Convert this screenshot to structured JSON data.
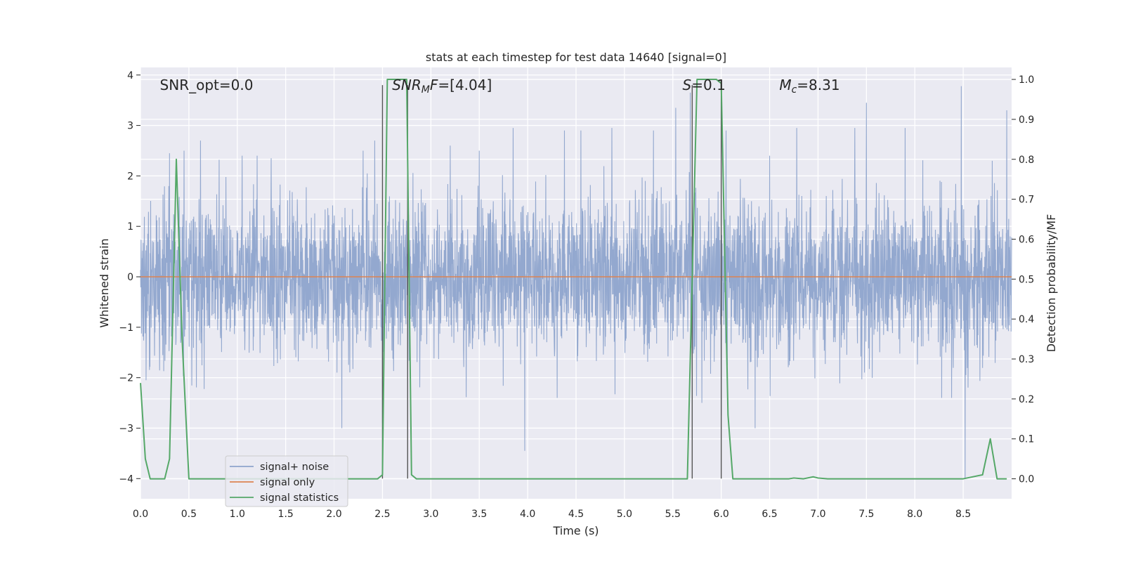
{
  "chart_data": {
    "type": "line",
    "title": "stats at each timestep for test data 14640 [signal=0]",
    "xlabel": "Time (s)",
    "ylabel_left": "Whitened strain",
    "ylabel_right": "Detection probability/MF",
    "xlim": [
      0.0,
      9.0
    ],
    "ylim_left": [
      -4.4,
      4.15
    ],
    "ylim_right": [
      -0.05,
      1.03
    ],
    "grid": true,
    "legend_position": "lower-left",
    "x_ticks": [
      "0.0",
      "0.5",
      "1.0",
      "1.5",
      "2.0",
      "2.5",
      "3.0",
      "3.5",
      "4.0",
      "4.5",
      "5.0",
      "5.5",
      "6.0",
      "6.5",
      "7.0",
      "7.5",
      "8.0",
      "8.5"
    ],
    "y_left_ticks": [
      "−4",
      "−3",
      "−2",
      "−1",
      "0",
      "1",
      "2",
      "3",
      "4"
    ],
    "y_right_ticks": [
      "0.0",
      "0.1",
      "0.2",
      "0.3",
      "0.4",
      "0.5",
      "0.6",
      "0.7",
      "0.8",
      "0.9",
      "1.0"
    ],
    "annotations": [
      {
        "text": "SNR_opt=0.0",
        "x": 0.2,
        "y": 3.8,
        "italic": false
      },
      {
        "text": "SNR",
        "sub": "M",
        "rest": "F=[4.04]",
        "x": 2.6,
        "y": 3.8,
        "italic": true
      },
      {
        "text": "S",
        "rest": "=0.1",
        "x": 5.6,
        "y": 3.8,
        "italic": true
      },
      {
        "text": "M",
        "sub": "c",
        "rest": "=8.31",
        "x": 6.6,
        "y": 3.8,
        "italic": true
      }
    ],
    "vertical_lines": [
      2.5,
      2.76,
      5.7,
      6.0
    ],
    "vertical_lines_ylim": [
      -4.0,
      3.8
    ],
    "series": [
      {
        "name": "signal+ noise",
        "color": "#8ea4cc",
        "axis": "left",
        "noise_std": 0.75,
        "spikes": [
          [
            0.3,
            2.45
          ],
          [
            0.45,
            2.5
          ],
          [
            0.62,
            2.7
          ],
          [
            1.05,
            2.4
          ],
          [
            1.35,
            2.35
          ],
          [
            2.08,
            -3.0
          ],
          [
            2.3,
            2.5
          ],
          [
            2.42,
            2.7
          ],
          [
            2.5,
            -2.9
          ],
          [
            3.2,
            2.6
          ],
          [
            3.5,
            2.5
          ],
          [
            3.85,
            2.95
          ],
          [
            3.97,
            -3.45
          ],
          [
            4.38,
            2.9
          ],
          [
            4.55,
            2.9
          ],
          [
            4.87,
            2.95
          ],
          [
            5.3,
            2.9
          ],
          [
            5.53,
            3.35
          ],
          [
            5.68,
            3.65
          ],
          [
            5.8,
            -2.5
          ],
          [
            6.05,
            2.9
          ],
          [
            6.0,
            -2.75
          ],
          [
            6.35,
            -3.0
          ],
          [
            6.5,
            2.4
          ],
          [
            6.78,
            2.95
          ],
          [
            7.38,
            2.95
          ],
          [
            7.5,
            3.45
          ],
          [
            7.9,
            2.95
          ],
          [
            8.48,
            3.78
          ],
          [
            8.52,
            -4.0
          ],
          [
            8.8,
            2.3
          ],
          [
            8.95,
            3.3
          ]
        ]
      },
      {
        "name": "signal only",
        "color": "#dd8452",
        "axis": "left",
        "x": [
          0.0,
          9.0
        ],
        "y": [
          0.0,
          0.0
        ]
      },
      {
        "name": "signal statistics",
        "color": "#55a868",
        "axis": "right",
        "x": [
          0.0,
          0.05,
          0.1,
          0.25,
          0.3,
          0.37,
          0.43,
          0.5,
          1.0,
          1.5,
          2.0,
          2.45,
          2.5,
          2.55,
          2.6,
          2.7,
          2.75,
          2.8,
          2.85,
          2.9,
          3.0,
          3.1,
          3.5,
          4.0,
          4.5,
          5.0,
          5.5,
          5.65,
          5.7,
          5.75,
          5.8,
          5.9,
          5.95,
          6.0,
          6.07,
          6.12,
          6.3,
          6.5,
          6.7,
          6.75,
          6.85,
          6.95,
          7.0,
          7.1,
          7.5,
          8.0,
          8.5,
          8.7,
          8.78,
          8.85,
          8.95
        ],
        "y": [
          0.24,
          0.05,
          0.0,
          0.0,
          0.05,
          0.8,
          0.35,
          0.0,
          0.0,
          0.0,
          0.0,
          0.0,
          0.01,
          1.0,
          1.0,
          1.0,
          1.0,
          0.01,
          0.0,
          0.0,
          0.0,
          0.0,
          0.0,
          0.0,
          0.0,
          0.0,
          0.0,
          0.0,
          0.5,
          1.0,
          1.0,
          1.0,
          1.0,
          0.99,
          0.16,
          0.0,
          0.0,
          0.0,
          0.0,
          0.002,
          0.0,
          0.005,
          0.002,
          0.0,
          0.0,
          0.0,
          0.0,
          0.01,
          0.1,
          0.0,
          0.0
        ]
      }
    ]
  }
}
